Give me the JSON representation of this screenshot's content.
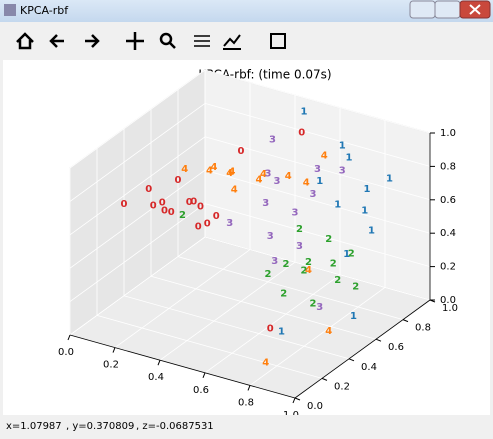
{
  "window": {
    "title": "KPCA-rbf"
  },
  "status": {
    "x": "x=1.07987",
    "y": ", y=0.370809",
    "z": ", z=-0.0687531"
  },
  "chart_data": {
    "type": "scatter3d",
    "title": "KPCA-rbf: (time 0.07s)",
    "xlim": [
      0,
      1
    ],
    "ylim": [
      0,
      1
    ],
    "zlim": [
      0,
      1
    ],
    "xticks": [
      {
        "value": 0,
        "label": "0.0"
      },
      0.2,
      0.4,
      0.6,
      0.8,
      {
        "value": 1,
        "label": "1.0"
      }
    ],
    "yticks": [
      {
        "value": 0,
        "label": "0.0"
      },
      0.2,
      0.4,
      0.6,
      0.8,
      {
        "value": 1,
        "label": "1.0"
      }
    ],
    "zticks": [
      {
        "value": 0,
        "label": "0.0"
      },
      0.2,
      0.4,
      0.6,
      0.8,
      {
        "value": 1,
        "label": "1.0"
      }
    ],
    "grid": true,
    "series": [
      {
        "name": "0",
        "color": "#d62728",
        "x": [
          0.05,
          0.1,
          0.15,
          0.2,
          0.25,
          0.3,
          0.12,
          0.18,
          0.22,
          0.28,
          0.0,
          0.35,
          0.08,
          0.4,
          0.55,
          0.65
        ],
        "y": [
          0.5,
          0.45,
          0.5,
          0.55,
          0.5,
          0.45,
          0.6,
          0.4,
          0.6,
          0.55,
          0.4,
          0.5,
          0.55,
          0.6,
          0.8,
          0.4
        ],
        "z": [
          0.6,
          0.55,
          0.5,
          0.55,
          0.6,
          0.5,
          0.62,
          0.58,
          0.5,
          0.45,
          0.55,
          0.55,
          0.5,
          0.9,
          0.95,
          0.05
        ]
      },
      {
        "name": "4",
        "color": "#ff7f0e",
        "x": [
          0.15,
          0.25,
          0.35,
          0.45,
          0.55,
          0.3,
          0.4,
          0.5,
          0.6,
          0.2,
          0.65,
          0.7,
          0.85,
          0.75
        ],
        "y": [
          0.6,
          0.65,
          0.6,
          0.65,
          0.7,
          0.7,
          0.55,
          0.6,
          0.75,
          0.7,
          0.8,
          0.6,
          0.5,
          0.2
        ],
        "z": [
          0.7,
          0.72,
          0.75,
          0.72,
          0.75,
          0.68,
          0.7,
          0.8,
          0.7,
          0.65,
          0.85,
          0.3,
          0.05,
          0.0
        ]
      },
      {
        "name": "3",
        "color": "#9467bd",
        "x": [
          0.45,
          0.5,
          0.55,
          0.5,
          0.6,
          0.45,
          0.55,
          0.65,
          0.4,
          0.6,
          0.7,
          0.35,
          0.75
        ],
        "y": [
          0.75,
          0.7,
          0.75,
          0.65,
          0.8,
          0.7,
          0.6,
          0.75,
          0.8,
          0.7,
          0.85,
          0.6,
          0.6
        ],
        "z": [
          0.9,
          0.7,
          0.5,
          0.4,
          0.6,
          0.55,
          0.3,
          0.8,
          0.65,
          0.35,
          0.75,
          0.45,
          0.1
        ]
      },
      {
        "name": "2",
        "color": "#2ca02c",
        "x": [
          0.6,
          0.65,
          0.7,
          0.75,
          0.8,
          0.65,
          0.7,
          0.6,
          0.75,
          0.8,
          0.55,
          0.85,
          0.2
        ],
        "y": [
          0.6,
          0.65,
          0.6,
          0.7,
          0.65,
          0.5,
          0.75,
          0.7,
          0.55,
          0.75,
          0.55,
          0.7,
          0.5
        ],
        "z": [
          0.3,
          0.25,
          0.35,
          0.3,
          0.25,
          0.2,
          0.4,
          0.45,
          0.15,
          0.35,
          0.25,
          0.2,
          0.5
        ]
      },
      {
        "name": "1",
        "color": "#1f77b4",
        "x": [
          0.7,
          0.75,
          0.65,
          0.8,
          0.7,
          0.75,
          0.85,
          0.6,
          0.8,
          0.7,
          0.9,
          0.5
        ],
        "y": [
          0.9,
          0.95,
          0.9,
          0.9,
          0.85,
          0.8,
          0.95,
          0.85,
          0.85,
          0.4,
          0.6,
          0.9
        ],
        "z": [
          0.8,
          0.6,
          0.5,
          0.4,
          0.9,
          0.3,
          0.7,
          0.65,
          0.55,
          0.05,
          0.1,
          1.0
        ]
      }
    ]
  }
}
